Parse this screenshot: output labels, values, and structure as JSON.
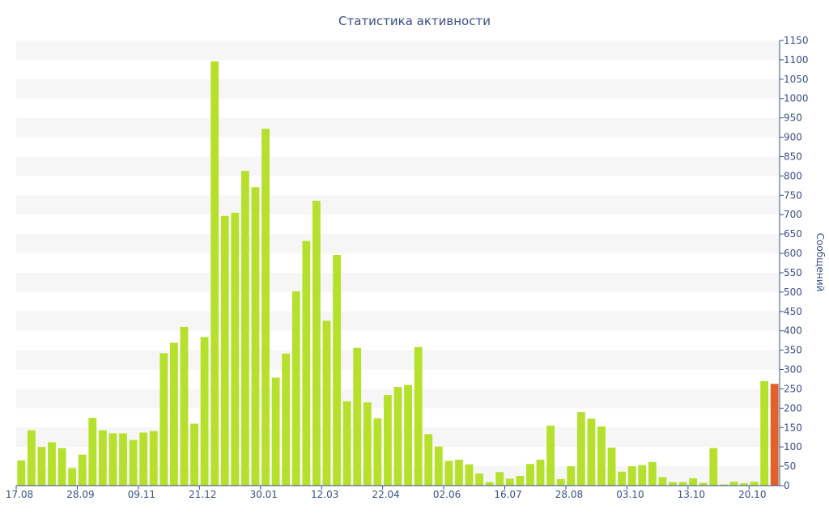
{
  "chart_data": {
    "type": "bar",
    "title": "Статистика активности",
    "ylabel": "Сообщений",
    "xlabel": "",
    "ylim": [
      0,
      1150
    ],
    "yticks": [
      0,
      50,
      100,
      150,
      200,
      250,
      300,
      350,
      400,
      450,
      500,
      550,
      600,
      650,
      700,
      750,
      800,
      850,
      900,
      950,
      1000,
      1050,
      1100,
      1150
    ],
    "y_axis_side": "right",
    "grid": "alternating horizontal bands",
    "x_tick_labels": [
      "17.08",
      "28.09",
      "09.11",
      "21.12",
      "30.01",
      "12.03",
      "22.04",
      "02.06",
      "16.07",
      "28.08",
      "03.10",
      "13.10",
      "20.10"
    ],
    "values": [
      65,
      143,
      100,
      112,
      97,
      45,
      80,
      175,
      143,
      135,
      135,
      118,
      137,
      141,
      342,
      369,
      410,
      160,
      384,
      1096,
      697,
      705,
      813,
      771,
      922,
      279,
      341,
      502,
      632,
      736,
      426,
      596,
      218,
      356,
      215,
      174,
      234,
      255,
      260,
      358,
      133,
      101,
      64,
      67,
      55,
      31,
      9,
      35,
      18,
      25,
      56,
      67,
      155,
      17,
      50,
      190,
      173,
      153,
      98,
      36,
      50,
      53,
      61,
      22,
      9,
      9,
      19,
      7,
      97,
      3,
      10,
      6,
      10,
      270,
      263
    ],
    "highlight_last": true,
    "colors": {
      "bar": "#b5e02c",
      "bar_last": "#e0622a",
      "band": "#f6f6f6",
      "axis": "#3a4f8a"
    }
  }
}
